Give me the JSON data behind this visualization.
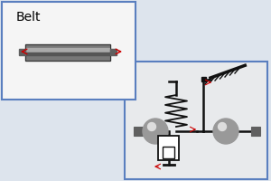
{
  "bg_outer": "#dde4ed",
  "bg_inner": "#e8eaec",
  "bg_belt_box": "#f5f5f5",
  "border_color": "#5a7fbf",
  "line_color": "#111111",
  "gray_sq": "#606060",
  "gray_ball": "#999999",
  "gray_ball_hi": "#dddddd",
  "red_color": "#cc0000",
  "belt_body": "#888888",
  "belt_hi": "#bbbbbb",
  "belt_label": "Belt",
  "spring_color": "#111111",
  "damper_color": "#111111"
}
